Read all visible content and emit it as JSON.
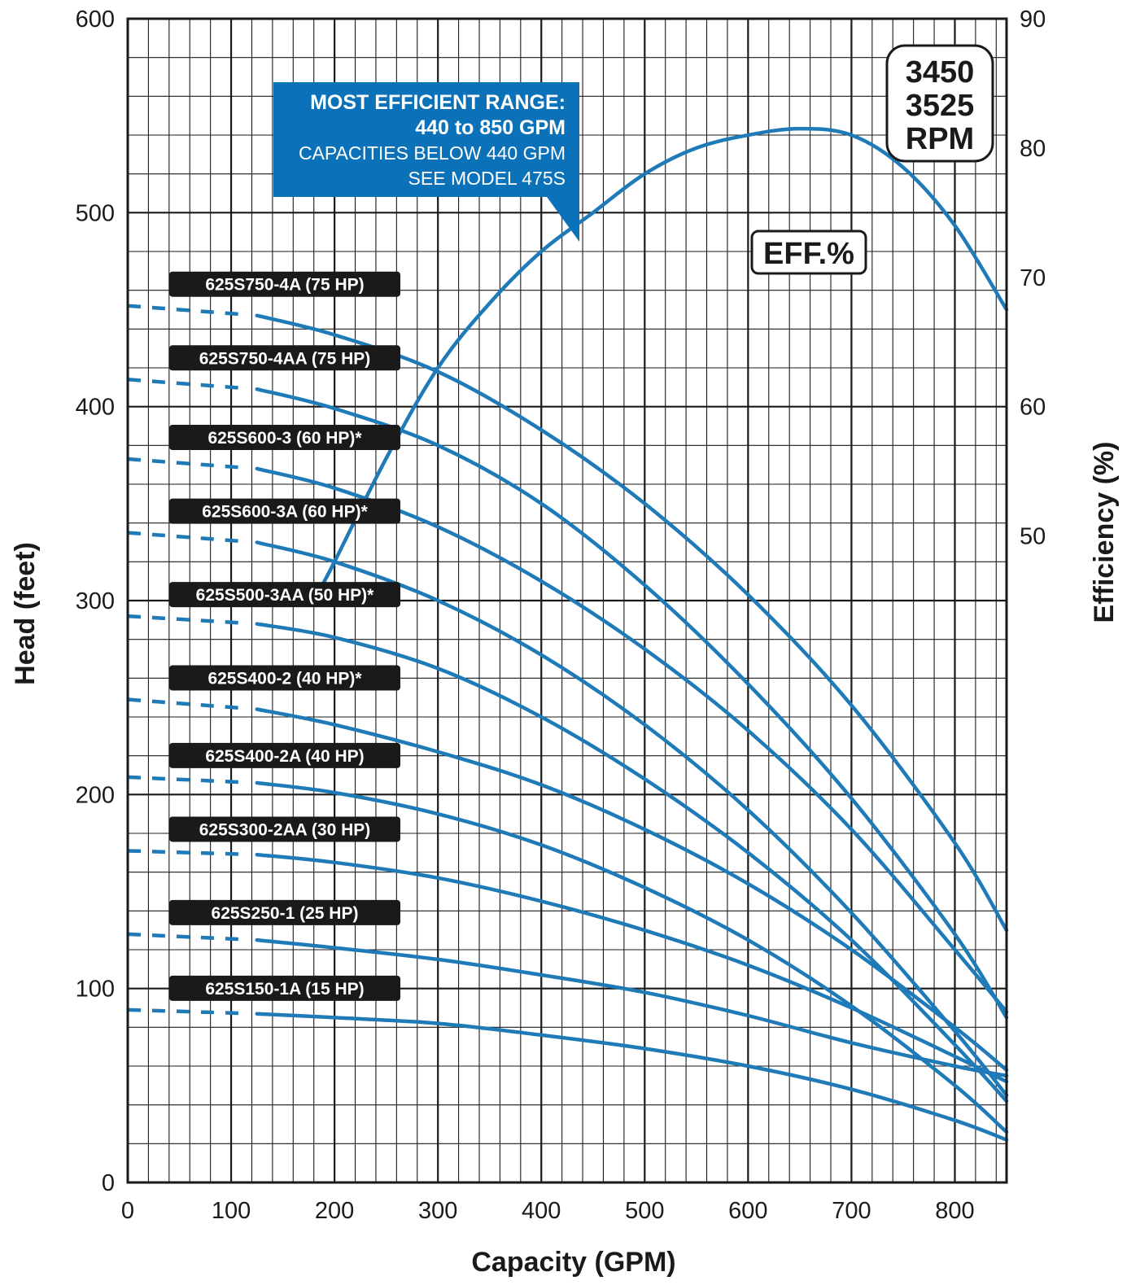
{
  "chart_data": {
    "type": "line",
    "xlabel": "Capacity (GPM)",
    "ylabel": "Head (feet)",
    "y2label": "Efficiency (%)",
    "xlim": [
      0,
      850
    ],
    "ylim": [
      0,
      600
    ],
    "y2lim": [
      0,
      90
    ],
    "x_ticks": [
      0,
      100,
      200,
      300,
      400,
      500,
      600,
      700,
      800
    ],
    "y_ticks": [
      0,
      100,
      200,
      300,
      400,
      500,
      600
    ],
    "y2_ticks": [
      50,
      60,
      70,
      80,
      90
    ],
    "grid": true,
    "line_color": "#1f7ab8",
    "callout": {
      "line1": "MOST EFFICIENT RANGE:",
      "line2": "440 to 850 GPM",
      "line3": "CAPACITIES BELOW 440 GPM",
      "line4": "SEE MODEL 475S",
      "color": "#0b72b9"
    },
    "rpm_badge": [
      "3450",
      "3525",
      "RPM"
    ],
    "efficiency_label": "EFF.%",
    "series": [
      {
        "name": "625S750-4A (75 HP)",
        "x": [
          0,
          125,
          200,
          300,
          400,
          500,
          600,
          700,
          800,
          850
        ],
        "y": [
          452,
          447,
          437,
          418,
          388,
          350,
          303,
          246,
          175,
          130
        ],
        "dashed_until": 110
      },
      {
        "name": "625S750-4AA (75 HP)",
        "x": [
          0,
          125,
          200,
          300,
          400,
          500,
          600,
          700,
          800,
          850
        ],
        "y": [
          414,
          409,
          399,
          380,
          350,
          308,
          257,
          198,
          128,
          85
        ],
        "dashed_until": 110
      },
      {
        "name": "625S600-3 (60 HP)*",
        "x": [
          0,
          125,
          200,
          300,
          400,
          500,
          600,
          700,
          800,
          850
        ],
        "y": [
          373,
          368,
          358,
          338,
          310,
          275,
          233,
          182,
          120,
          88
        ],
        "dashed_until": 110
      },
      {
        "name": "625S600-3A (60 HP)*",
        "x": [
          0,
          125,
          200,
          300,
          400,
          500,
          600,
          700,
          800,
          850
        ],
        "y": [
          335,
          330,
          320,
          300,
          272,
          236,
          192,
          139,
          78,
          45
        ],
        "dashed_until": 110
      },
      {
        "name": "625S500-3AA (50 HP)*",
        "x": [
          0,
          125,
          200,
          300,
          400,
          500,
          600,
          700,
          800,
          850
        ],
        "y": [
          292,
          288,
          281,
          265,
          240,
          208,
          170,
          125,
          71,
          42
        ],
        "dashed_until": 110
      },
      {
        "name": "625S400-2 (40 HP)*",
        "x": [
          0,
          125,
          200,
          300,
          400,
          500,
          600,
          700,
          800,
          850
        ],
        "y": [
          249,
          244,
          236,
          222,
          205,
          182,
          154,
          120,
          80,
          58
        ],
        "dashed_until": 110
      },
      {
        "name": "625S400-2A (40 HP)",
        "x": [
          0,
          125,
          200,
          300,
          400,
          500,
          600,
          700,
          800,
          850
        ],
        "y": [
          209,
          206,
          201,
          190,
          174,
          152,
          125,
          91,
          50,
          26
        ],
        "dashed_until": 110
      },
      {
        "name": "625S300-2AA (30 HP)",
        "x": [
          0,
          125,
          200,
          300,
          400,
          500,
          600,
          700,
          800,
          850
        ],
        "y": [
          171,
          169,
          165,
          157,
          145,
          130,
          112,
          90,
          65,
          52
        ],
        "dashed_until": 110
      },
      {
        "name": "625S250-1 (25 HP)",
        "x": [
          0,
          125,
          200,
          300,
          400,
          500,
          600,
          700,
          800,
          850
        ],
        "y": [
          128,
          125,
          121,
          115,
          107,
          98,
          86,
          72,
          60,
          55
        ],
        "dashed_until": 110
      },
      {
        "name": "625S150-1A (15 HP)",
        "x": [
          0,
          125,
          200,
          300,
          400,
          500,
          600,
          700,
          800,
          850
        ],
        "y": [
          89,
          87,
          85,
          82,
          76,
          69,
          60,
          48,
          32,
          22
        ],
        "dashed_until": 110
      }
    ],
    "efficiency_curve": {
      "axis": "right",
      "x": [
        180,
        200,
        250,
        300,
        350,
        400,
        450,
        500,
        550,
        600,
        650,
        700,
        750,
        800,
        850
      ],
      "y": [
        45,
        48,
        56,
        63,
        68,
        72,
        75,
        78,
        80,
        81,
        81.5,
        81,
        78.5,
        74,
        67.5
      ]
    }
  }
}
